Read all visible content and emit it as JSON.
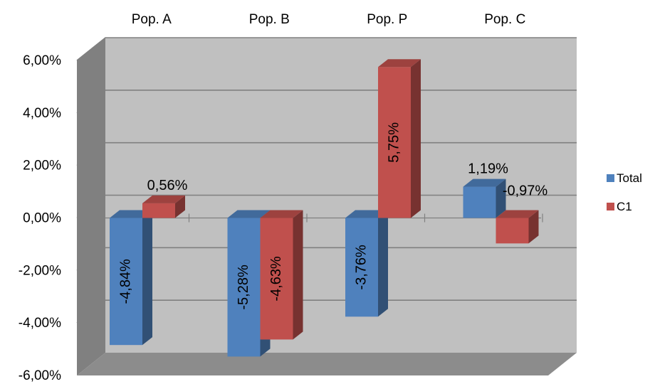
{
  "chart_data": {
    "type": "bar",
    "categories": [
      "Pop. A",
      "Pop. B",
      "Pop. P",
      "Pop. C"
    ],
    "series": [
      {
        "name": "Total",
        "values": [
          -4.84,
          -5.28,
          -3.76,
          1.19
        ],
        "labels": [
          "-4,84%",
          "-5,28%",
          "-3,76%",
          "1,19%"
        ],
        "color": "#4f81bd"
      },
      {
        "name": "C1",
        "values": [
          0.56,
          -4.63,
          5.75,
          -0.97
        ],
        "labels": [
          "0,56%",
          "-4,63%",
          "5,75%",
          "-0,97%"
        ],
        "color": "#c0504d"
      }
    ],
    "ylim": [
      -6,
      6
    ],
    "yticks": [
      6,
      4,
      2,
      0,
      -2,
      -4,
      -6
    ],
    "ytick_labels": [
      "6,00%",
      "4,00%",
      "2,00%",
      "0,00%",
      "-2,00%",
      "-4,00%",
      "-6,00%"
    ],
    "grid": true,
    "legend_position": "right",
    "category_axis_position": "top",
    "style": "3d-column",
    "colors": {
      "wall": "#c0c0c0",
      "side_wall": "#808080",
      "floor": "#8c8c8c",
      "grid": "#808080"
    }
  }
}
